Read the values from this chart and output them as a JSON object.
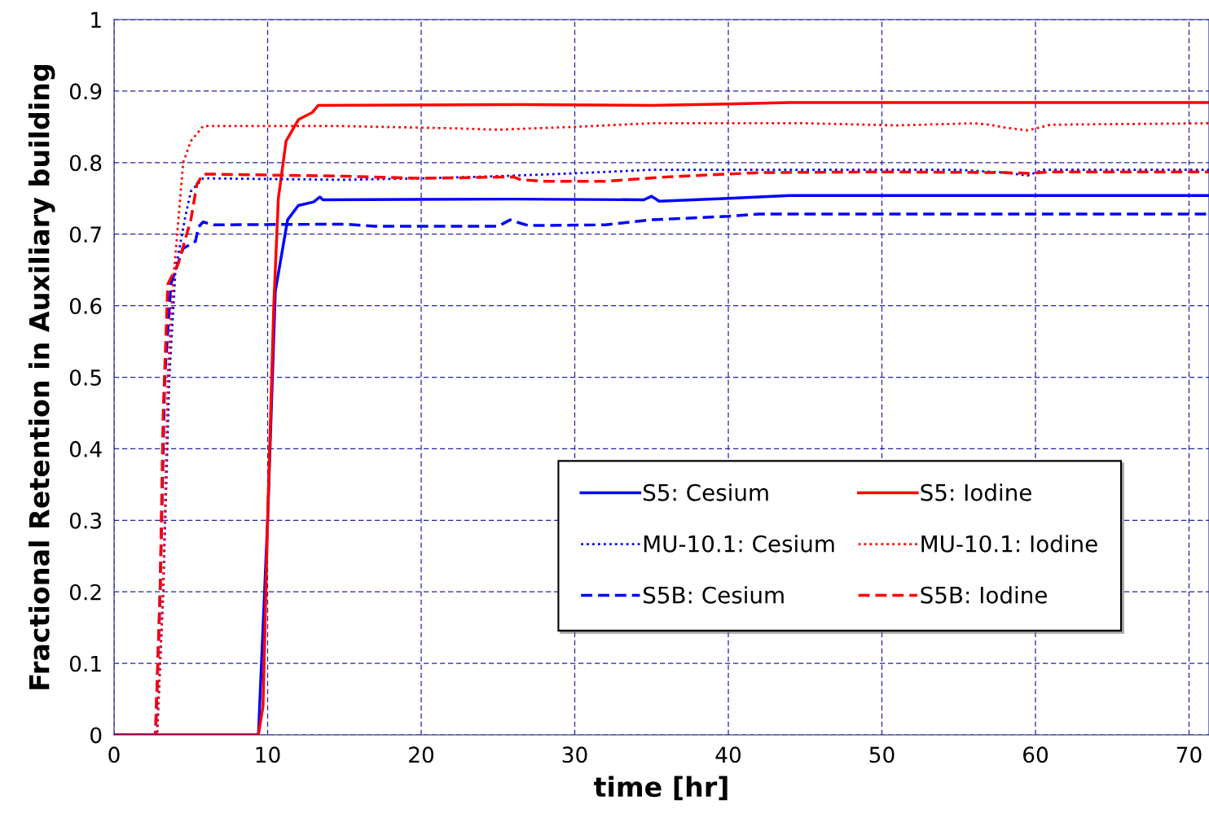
{
  "chart_data": {
    "type": "line",
    "xlabel": "time [hr]",
    "ylabel": "Fractional Retention in Auxiliary building",
    "xlim": [
      0,
      71.3
    ],
    "ylim": [
      0,
      1
    ],
    "xticks": [
      0,
      10,
      20,
      30,
      40,
      50,
      60,
      70
    ],
    "yticks": [
      0,
      0.1,
      0.2,
      0.3,
      0.4,
      0.5,
      0.6,
      0.7,
      0.8,
      0.9,
      1
    ],
    "grid": true,
    "legend": "bottom right",
    "series": [
      {
        "name": "S5: Cesium",
        "color": "#0000ff",
        "line_style": "solid",
        "x": [
          0,
          9.4,
          10.0,
          10.5,
          10.9,
          11.3,
          12,
          13,
          13.4,
          13.6,
          26,
          34.5,
          35,
          35.5,
          40,
          44,
          71.3
        ],
        "values": [
          0,
          0,
          0.3,
          0.62,
          0.67,
          0.72,
          0.74,
          0.745,
          0.752,
          0.748,
          0.749,
          0.748,
          0.753,
          0.746,
          0.75,
          0.754,
          0.754
        ]
      },
      {
        "name": "S5: Iodine",
        "color": "#ff0000",
        "line_style": "solid",
        "x": [
          0,
          9.4,
          9.7,
          10.0,
          10.4,
          10.7,
          11.2,
          12,
          12.9,
          13.3,
          26.5,
          35,
          40,
          44,
          71.3
        ],
        "values": [
          0,
          0,
          0.04,
          0.3,
          0.6,
          0.75,
          0.83,
          0.86,
          0.87,
          0.88,
          0.881,
          0.88,
          0.882,
          0.884,
          0.884
        ]
      },
      {
        "name": "MU-10.1: Cesium",
        "color": "#0000ff",
        "line_style": "dotted",
        "x": [
          0,
          2.8,
          3.2,
          3.6,
          4,
          4.6,
          5,
          5.8,
          15,
          20,
          25,
          30,
          35,
          45,
          55,
          58,
          59.5,
          60.5,
          71.3
        ],
        "values": [
          0,
          0,
          0.2,
          0.5,
          0.65,
          0.72,
          0.76,
          0.778,
          0.776,
          0.778,
          0.781,
          0.785,
          0.79,
          0.79,
          0.79,
          0.786,
          0.782,
          0.79,
          0.79
        ]
      },
      {
        "name": "MU-10.1: Iodine",
        "color": "#ff0000",
        "line_style": "dotted",
        "x": [
          0,
          2.8,
          3.2,
          3.5,
          3.8,
          4.5,
          5,
          5.8,
          15,
          22,
          25,
          30,
          35,
          45,
          51,
          56,
          57,
          58,
          59.5,
          61,
          71.3
        ],
        "values": [
          0,
          0,
          0.2,
          0.5,
          0.62,
          0.8,
          0.83,
          0.851,
          0.851,
          0.848,
          0.846,
          0.85,
          0.855,
          0.855,
          0.852,
          0.855,
          0.853,
          0.849,
          0.845,
          0.853,
          0.855
        ]
      },
      {
        "name": "S5B: Cesium",
        "color": "#0000ff",
        "line_style": "dashed",
        "x": [
          0,
          2.7,
          3.0,
          3.3,
          3.7,
          4.5,
          5.3,
          5.5,
          5.8,
          6.5,
          15,
          17,
          25,
          25.8,
          26.5,
          27,
          32,
          35,
          40,
          42,
          71.3
        ],
        "values": [
          0,
          0,
          0.2,
          0.5,
          0.63,
          0.68,
          0.69,
          0.71,
          0.717,
          0.713,
          0.714,
          0.711,
          0.711,
          0.72,
          0.715,
          0.712,
          0.713,
          0.72,
          0.725,
          0.728,
          0.728
        ]
      },
      {
        "name": "S5B: Iodine",
        "color": "#ff0000",
        "line_style": "dashed",
        "x": [
          0,
          2.7,
          3.0,
          3.2,
          3.5,
          4.2,
          5,
          5.4,
          5.8,
          15,
          20,
          26,
          26.5,
          28,
          32,
          36,
          42,
          50,
          58,
          59.6,
          61,
          71.3
        ],
        "values": [
          0,
          0,
          0.2,
          0.45,
          0.63,
          0.66,
          0.72,
          0.77,
          0.784,
          0.781,
          0.778,
          0.78,
          0.776,
          0.774,
          0.774,
          0.78,
          0.786,
          0.787,
          0.786,
          0.785,
          0.787,
          0.787
        ]
      }
    ]
  }
}
